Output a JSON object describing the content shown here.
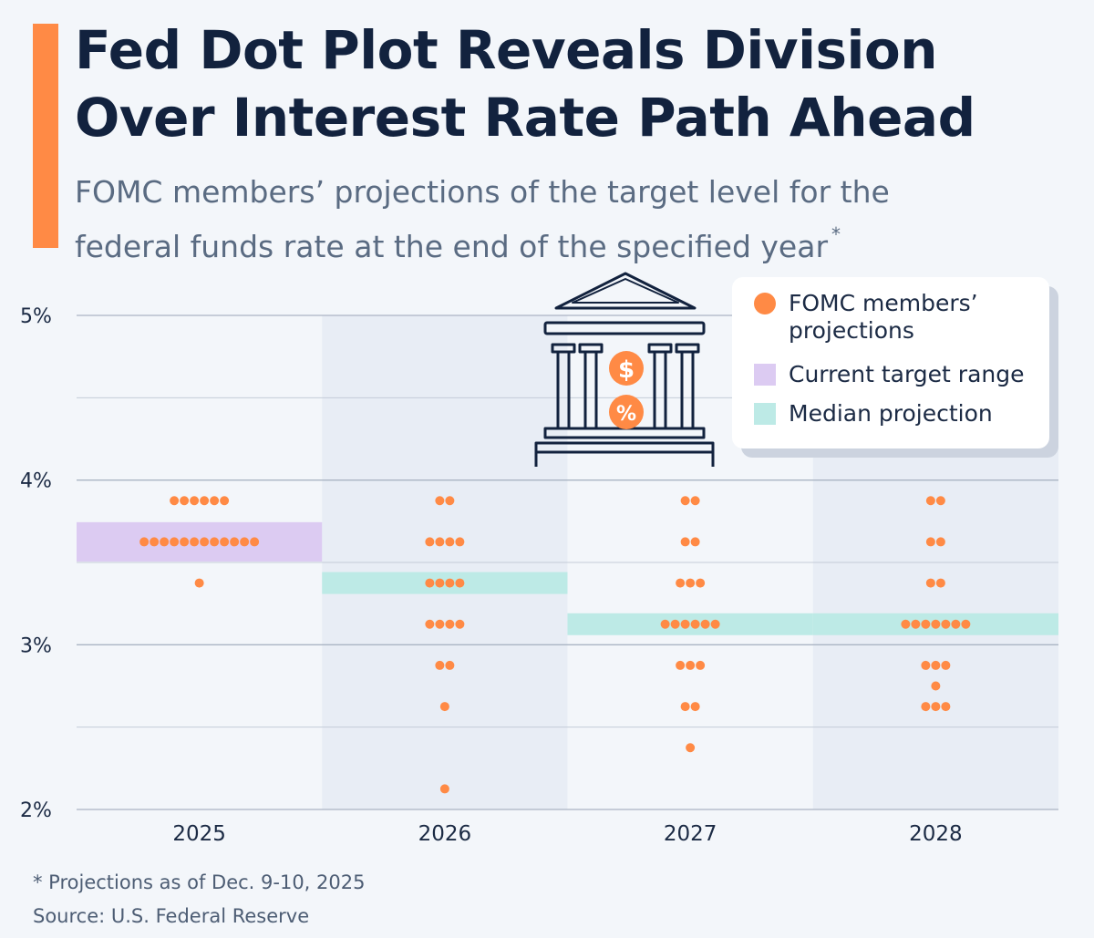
{
  "header": {
    "title": "Fed Dot Plot Reveals Division Over Interest Rate Path Ahead",
    "subtitle": "FOMC members’ projections of the target level for the federal funds rate at the end of the specified year",
    "subtitle_mark": "*"
  },
  "legend": {
    "projections": "FOMC members’ projections",
    "current_range": "Current target range",
    "median": "Median projection"
  },
  "footer": {
    "footnote": "* Projections as of Dec. 9-10, 2025",
    "source": "Source: U.S. Federal Reserve"
  },
  "colors": {
    "dot": "#ff8a45",
    "current_range": "#dccbf2",
    "median": "#bdeae6",
    "accent": "#ff8a45",
    "title": "#12223e",
    "band": "#e8edf5"
  },
  "icons": [
    "bank-building-icon",
    "dollar-icon",
    "percent-icon"
  ],
  "chart_data": {
    "type": "scatter",
    "categories": [
      "2025",
      "2026",
      "2027",
      "2028"
    ],
    "ylim": [
      2,
      5
    ],
    "yticks": [
      2,
      3,
      4,
      5
    ],
    "ytick_labels": [
      "2%",
      "3%",
      "4%",
      "5%"
    ],
    "grid": true,
    "legend_position": "top-right",
    "projections": [
      {
        "year": "2025",
        "dots": [
          {
            "rate": 3.875,
            "count": 6
          },
          {
            "rate": 3.625,
            "count": 12
          },
          {
            "rate": 3.375,
            "count": 1
          }
        ]
      },
      {
        "year": "2026",
        "dots": [
          {
            "rate": 3.875,
            "count": 2
          },
          {
            "rate": 3.625,
            "count": 4
          },
          {
            "rate": 3.375,
            "count": 4
          },
          {
            "rate": 3.125,
            "count": 4
          },
          {
            "rate": 2.875,
            "count": 2
          },
          {
            "rate": 2.625,
            "count": 1
          },
          {
            "rate": 2.125,
            "count": 1
          }
        ]
      },
      {
        "year": "2027",
        "dots": [
          {
            "rate": 3.875,
            "count": 2
          },
          {
            "rate": 3.625,
            "count": 2
          },
          {
            "rate": 3.375,
            "count": 3
          },
          {
            "rate": 3.125,
            "count": 6
          },
          {
            "rate": 2.875,
            "count": 3
          },
          {
            "rate": 2.625,
            "count": 2
          },
          {
            "rate": 2.375,
            "count": 1
          }
        ]
      },
      {
        "year": "2028",
        "dots": [
          {
            "rate": 3.875,
            "count": 2
          },
          {
            "rate": 3.625,
            "count": 2
          },
          {
            "rate": 3.375,
            "count": 2
          },
          {
            "rate": 3.125,
            "count": 7
          },
          {
            "rate": 2.875,
            "count": 3
          },
          {
            "rate": 2.75,
            "count": 1
          },
          {
            "rate": 2.625,
            "count": 3
          }
        ]
      }
    ],
    "current_target_range": {
      "year": "2025",
      "low": 3.5,
      "high": 3.75
    },
    "median_projection": [
      {
        "year": "2026",
        "value": 3.375
      },
      {
        "year": "2027",
        "value": 3.125
      },
      {
        "year": "2028",
        "value": 3.125
      }
    ]
  }
}
